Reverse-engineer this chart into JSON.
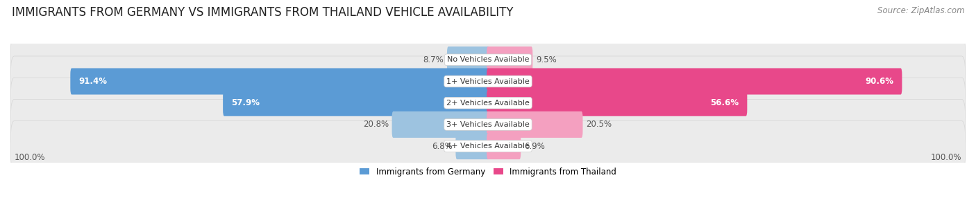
{
  "title": "IMMIGRANTS FROM GERMANY VS IMMIGRANTS FROM THAILAND VEHICLE AVAILABILITY",
  "source": "Source: ZipAtlas.com",
  "categories": [
    "No Vehicles Available",
    "1+ Vehicles Available",
    "2+ Vehicles Available",
    "3+ Vehicles Available",
    "4+ Vehicles Available"
  ],
  "germany_values": [
    8.7,
    91.4,
    57.9,
    20.8,
    6.8
  ],
  "thailand_values": [
    9.5,
    90.6,
    56.6,
    20.5,
    6.9
  ],
  "germany_color": "#9dc3e0",
  "germany_color_dark": "#5b9bd5",
  "thailand_color": "#f4a0c0",
  "thailand_color_dark": "#e8488a",
  "label_color": "#555555",
  "bg_color": "#ffffff",
  "row_bg_color": "#ebebeb",
  "row_border_color": "#d5d5d5",
  "max_value": 100.0,
  "title_fontsize": 12,
  "source_fontsize": 8.5,
  "label_fontsize": 8.5,
  "cat_fontsize": 8,
  "bar_height": 0.62,
  "large_threshold": 40,
  "legend_label_germany": "Immigrants from Germany",
  "legend_label_thailand": "Immigrants from Thailand"
}
